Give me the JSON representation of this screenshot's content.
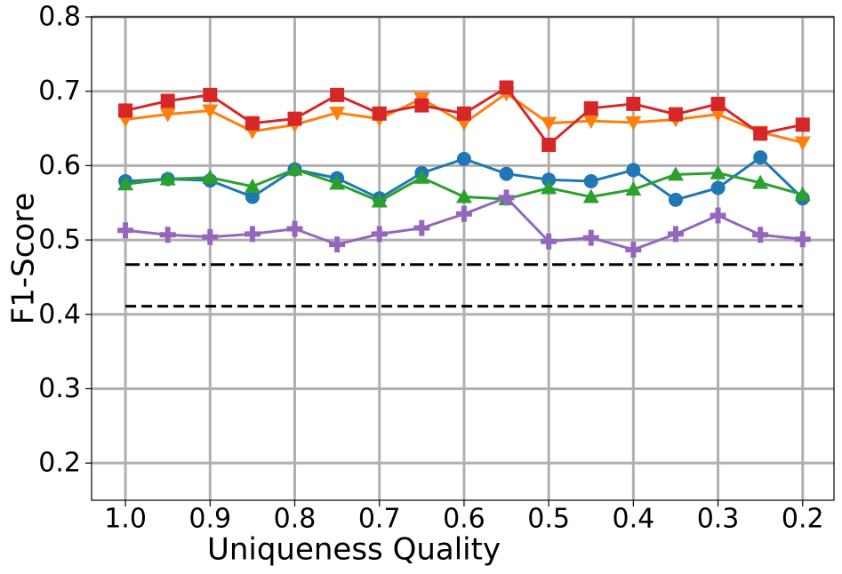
{
  "chart_data": {
    "type": "line",
    "xlabel": "Uniqueness Quality",
    "ylabel": "F1-Score",
    "x": [
      1.0,
      0.95,
      0.9,
      0.85,
      0.8,
      0.75,
      0.7,
      0.65,
      0.6,
      0.55,
      0.5,
      0.45,
      0.4,
      0.35,
      0.3,
      0.25,
      0.2
    ],
    "xlim": [
      1.04,
      0.163
    ],
    "xticks": [
      {
        "value": 1,
        "label": "1.0"
      },
      0.9,
      0.8,
      0.7,
      0.6,
      0.5,
      0.4,
      0.3,
      0.2
    ],
    "ylim": [
      0.15,
      0.8
    ],
    "yticks": [
      0.2,
      0.3,
      0.4,
      0.5,
      0.6,
      0.7,
      0.8
    ],
    "grid": true,
    "series": [
      {
        "color": "#1f77b4",
        "marker": "circle",
        "linestyle": "solid",
        "values": [
          0.579,
          0.582,
          0.58,
          0.558,
          0.595,
          0.583,
          0.556,
          0.59,
          0.609,
          0.589,
          0.581,
          0.579,
          0.594,
          0.554,
          0.57,
          0.611,
          0.556
        ]
      },
      {
        "color": "#ff7f0e",
        "marker": "triangle-down",
        "linestyle": "solid",
        "values": [
          0.662,
          0.669,
          0.674,
          0.646,
          0.655,
          0.671,
          0.663,
          0.69,
          0.657,
          0.697,
          0.657,
          0.66,
          0.658,
          0.662,
          0.669,
          0.645,
          0.631
        ]
      },
      {
        "color": "#2ca02c",
        "marker": "triangle-up",
        "linestyle": "solid",
        "values": [
          0.575,
          0.582,
          0.584,
          0.572,
          0.595,
          0.576,
          0.552,
          0.584,
          0.558,
          0.555,
          0.57,
          0.558,
          0.568,
          0.588,
          0.59,
          0.577,
          0.561
        ]
      },
      {
        "color": "#d62728",
        "marker": "square",
        "linestyle": "solid",
        "values": [
          0.674,
          0.687,
          0.695,
          0.657,
          0.663,
          0.695,
          0.67,
          0.681,
          0.67,
          0.705,
          0.628,
          0.677,
          0.683,
          0.669,
          0.683,
          0.643,
          0.655
        ]
      },
      {
        "color": "#9467bd",
        "marker": "plus",
        "linestyle": "solid",
        "values": [
          0.513,
          0.507,
          0.504,
          0.508,
          0.515,
          0.494,
          0.508,
          0.516,
          0.535,
          0.557,
          0.498,
          0.503,
          0.487,
          0.508,
          0.533,
          0.507,
          0.501
        ]
      },
      {
        "color": "#000000",
        "marker": "none",
        "linestyle": "dashdot",
        "values": [
          0.467,
          0.467,
          0.467,
          0.467,
          0.467,
          0.467,
          0.467,
          0.467,
          0.467,
          0.467,
          0.467,
          0.467,
          0.467,
          0.467,
          0.467,
          0.467,
          0.467
        ]
      },
      {
        "color": "#000000",
        "marker": "none",
        "linestyle": "dashed",
        "values": [
          0.411,
          0.411,
          0.411,
          0.411,
          0.411,
          0.411,
          0.411,
          0.411,
          0.411,
          0.411,
          0.411,
          0.411,
          0.411,
          0.411,
          0.411,
          0.411,
          0.411
        ]
      }
    ]
  }
}
